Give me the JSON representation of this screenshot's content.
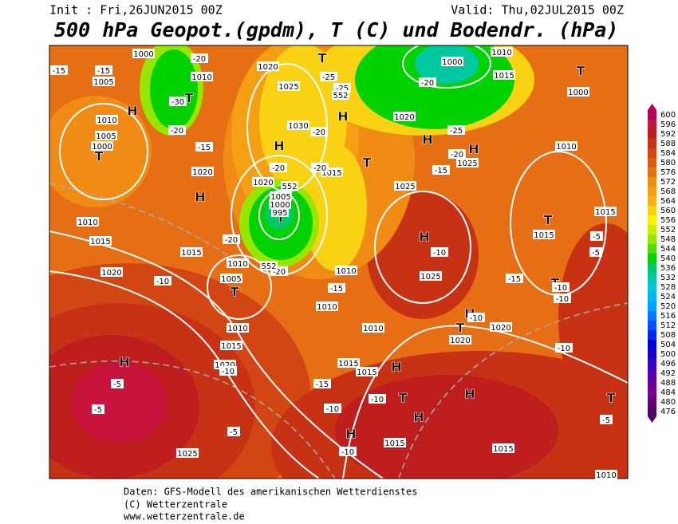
{
  "header": {
    "init": "Init : Fri,26JUN2015 00Z",
    "valid": "Valid: Thu,02JUL2015 00Z",
    "title": "500 hPa Geopot.(gpdm), T (C) und Bodendr. (hPa)"
  },
  "colorbar": {
    "levels": [
      600,
      596,
      592,
      588,
      584,
      580,
      576,
      572,
      568,
      564,
      560,
      556,
      552,
      548,
      544,
      540,
      536,
      532,
      528,
      524,
      520,
      516,
      512,
      508,
      504,
      500,
      496,
      492,
      488,
      484,
      480,
      476
    ],
    "colors": [
      "#b4005a",
      "#c8143c",
      "#be1e1e",
      "#c83214",
      "#d24614",
      "#dc5a14",
      "#e66e14",
      "#f08c14",
      "#f5a014",
      "#f5b414",
      "#fad214",
      "#fff000",
      "#c8f000",
      "#96e600",
      "#50dc00",
      "#00d200",
      "#00c864",
      "#00c8a0",
      "#00c8dc",
      "#00b4f0",
      "#00a0ff",
      "#0078ff",
      "#0050ff",
      "#0028f0",
      "#0000dc",
      "#1400c8",
      "#3200c8",
      "#5000b4",
      "#6400a0",
      "#78008c",
      "#640078",
      "#500064"
    ]
  },
  "map_labels": [
    "T",
    "T",
    "H",
    "T",
    "H",
    "H",
    "H",
    "T",
    "T",
    "H",
    "H",
    "T",
    "T",
    "H",
    "T",
    "H",
    "T",
    "H",
    "H",
    "T",
    "H",
    "H",
    "H",
    "T",
    "T",
    "1000",
    "1010",
    "1005",
    "1010",
    "1005",
    "1000",
    "1020",
    "1025",
    "1030",
    "1020",
    "1015",
    "1020",
    "1005",
    "1000",
    "995",
    "1010",
    "1005",
    "1015",
    "1015",
    "1010",
    "1020",
    "1010",
    "1015",
    "1020",
    "1025",
    "1010",
    "1010",
    "1010",
    "1015",
    "1015",
    "1015",
    "1015",
    "1025",
    "1025",
    "1020",
    "1020",
    "1020",
    "1015",
    "1015",
    "1010",
    "1000",
    "1010",
    "1015",
    "1000",
    "1025",
    "1010",
    "-15",
    "-15",
    "-20",
    "-30",
    "-20",
    "-15",
    "-20",
    "-25",
    "-25",
    "-20",
    "-20",
    "-20",
    "-25",
    "-20",
    "-15",
    "-10",
    "-20",
    "-20",
    "-15",
    "-10",
    "-15",
    "-10",
    "-10",
    "-5",
    "-5",
    "-10",
    "-10",
    "-10",
    "-15",
    "-10",
    "-10",
    "-5",
    "-5",
    "-5",
    "-10",
    "-5",
    "552",
    "552",
    "552"
  ],
  "footer": {
    "line1": "Daten: GFS-Modell des amerikanischen Wetterdienstes",
    "line2": "(C) Wetterzentrale",
    "line3": "www.wetterzentrale.de"
  }
}
